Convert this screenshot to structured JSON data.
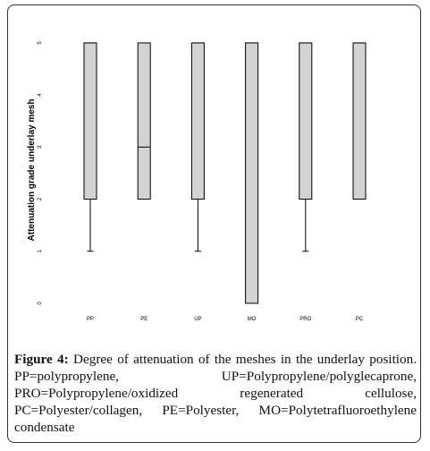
{
  "chart_data": {
    "type": "box",
    "ylabel": "Attenuation grade underlay mesh",
    "categories": [
      "PP",
      "PE",
      "UP",
      "MO",
      "PRO",
      "PC"
    ],
    "boxes": [
      {
        "min": 1,
        "q1": 2,
        "median": 5,
        "q3": 5,
        "max": 5
      },
      {
        "min": 2,
        "q1": 2,
        "median": 3,
        "q3": 5,
        "max": 5
      },
      {
        "min": 1,
        "q1": 2,
        "median": 5,
        "q3": 5,
        "max": 5
      },
      {
        "min": 0,
        "q1": 0,
        "median": 5,
        "q3": 5,
        "max": 5
      },
      {
        "min": 1,
        "q1": 2,
        "median": 5,
        "q3": 5,
        "max": 5
      },
      {
        "min": 2,
        "q1": 2,
        "median": 5,
        "q3": 5,
        "max": 5
      }
    ],
    "color": "#d3d3d3",
    "ylim": [
      -0.2,
      5.3
    ],
    "yticks": [
      0,
      1,
      2,
      3,
      4,
      5
    ],
    "caption_label": "Figure 4:",
    "caption": "Degree of attenuation of the meshes in the underlay position. PP=polypropylene, UP=Polypropylene/polyglecaprone, PRO=Polypropylene/oxidized regenerated cellulose, PC=Polyester/collagen, PE=Polyester, MO=Polytetrafluoroethylene condensate"
  }
}
